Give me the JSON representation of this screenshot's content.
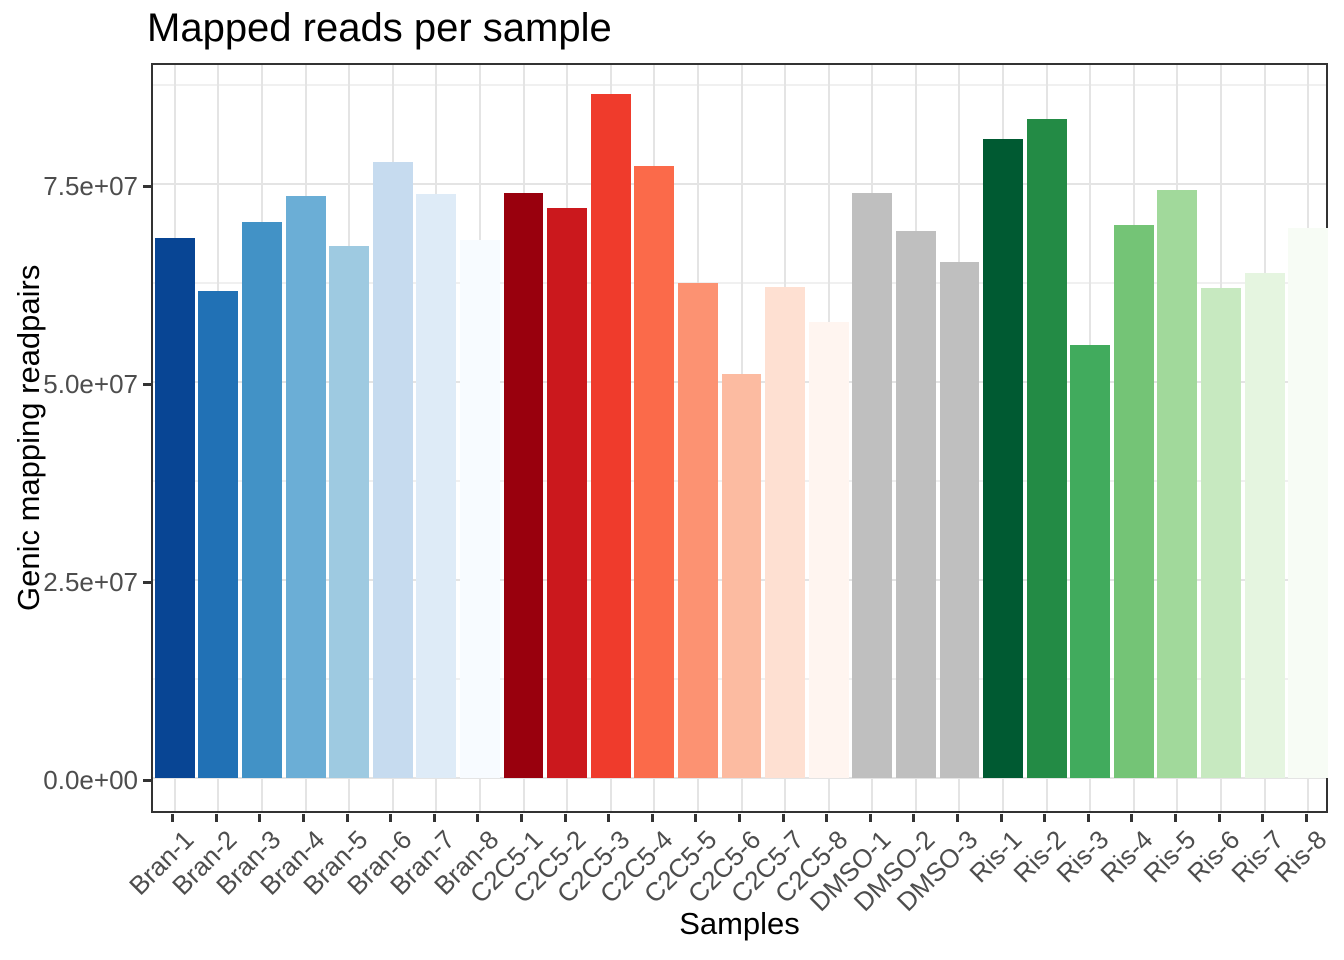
{
  "chart_data": {
    "type": "bar",
    "title": "Mapped reads per sample",
    "xlabel": "Samples",
    "ylabel": "Genic mapping readpairs",
    "categories": [
      "Bran-1",
      "Bran-2",
      "Bran-3",
      "Bran-4",
      "Bran-5",
      "Bran-6",
      "Bran-7",
      "Bran-8",
      "C2C5-1",
      "C2C5-2",
      "C2C5-3",
      "C2C5-4",
      "C2C5-5",
      "C2C5-6",
      "C2C5-7",
      "C2C5-8",
      "DMSO-1",
      "DMSO-2",
      "DMSO-3",
      "Ris-1",
      "Ris-2",
      "Ris-3",
      "Ris-4",
      "Ris-5",
      "Ris-6",
      "Ris-7",
      "Ris-8"
    ],
    "values": [
      68100000,
      61500000,
      70200000,
      73500000,
      67100000,
      77700000,
      73700000,
      67900000,
      73900000,
      71900000,
      86300000,
      77300000,
      62500000,
      51000000,
      62000000,
      57500000,
      73900000,
      69100000,
      65100000,
      80700000,
      83200000,
      54700000,
      69800000,
      74200000,
      61900000,
      63800000,
      69400000
    ],
    "bar_colors": [
      "#084594",
      "#2171b5",
      "#4292c6",
      "#6baed6",
      "#9ecae1",
      "#c6dbef",
      "#deebf7",
      "#f7fbff",
      "#99000d",
      "#cb181d",
      "#ef3b2c",
      "#fb6a4a",
      "#fc9272",
      "#fcbba1",
      "#fee0d2",
      "#fff5f0",
      "#bfbfbf",
      "#bfbfbf",
      "#bfbfbf",
      "#005a32",
      "#238b45",
      "#41ab5d",
      "#74c476",
      "#a1d99b",
      "#c7e9c0",
      "#e5f5e0",
      "#f7fcf5"
    ],
    "groups": [
      {
        "name": "Bran",
        "count": 8,
        "palette": "blues dark-to-light"
      },
      {
        "name": "C2C5",
        "count": 8,
        "palette": "reds dark-to-light"
      },
      {
        "name": "DMSO",
        "count": 3,
        "palette": "gray"
      },
      {
        "name": "Ris",
        "count": 8,
        "palette": "greens dark-to-light"
      }
    ],
    "ylim": [
      0,
      90500000
    ],
    "yticks": [
      {
        "value": 0,
        "label": "0.0e+00"
      },
      {
        "value": 25000000,
        "label": "2.5e+07"
      },
      {
        "value": 50000000,
        "label": "5.0e+07"
      },
      {
        "value": 75000000,
        "label": "7.5e+07"
      }
    ],
    "minor_gridlines": [
      12500000,
      37500000,
      62500000,
      87500000
    ],
    "grid": "major and minor horizontal, major vertical per category",
    "legend": "none",
    "x_label_rotation_deg": 45
  },
  "colors": {
    "background": "#ffffff",
    "panel_background": "#ffffff",
    "panel_border": "#333333",
    "grid_major": "#e4e4e4",
    "grid_minor": "#f0f0f0",
    "axis_tick_text": "#4d4d4d",
    "tick_mark": "#333333",
    "title_text": "#000000"
  }
}
